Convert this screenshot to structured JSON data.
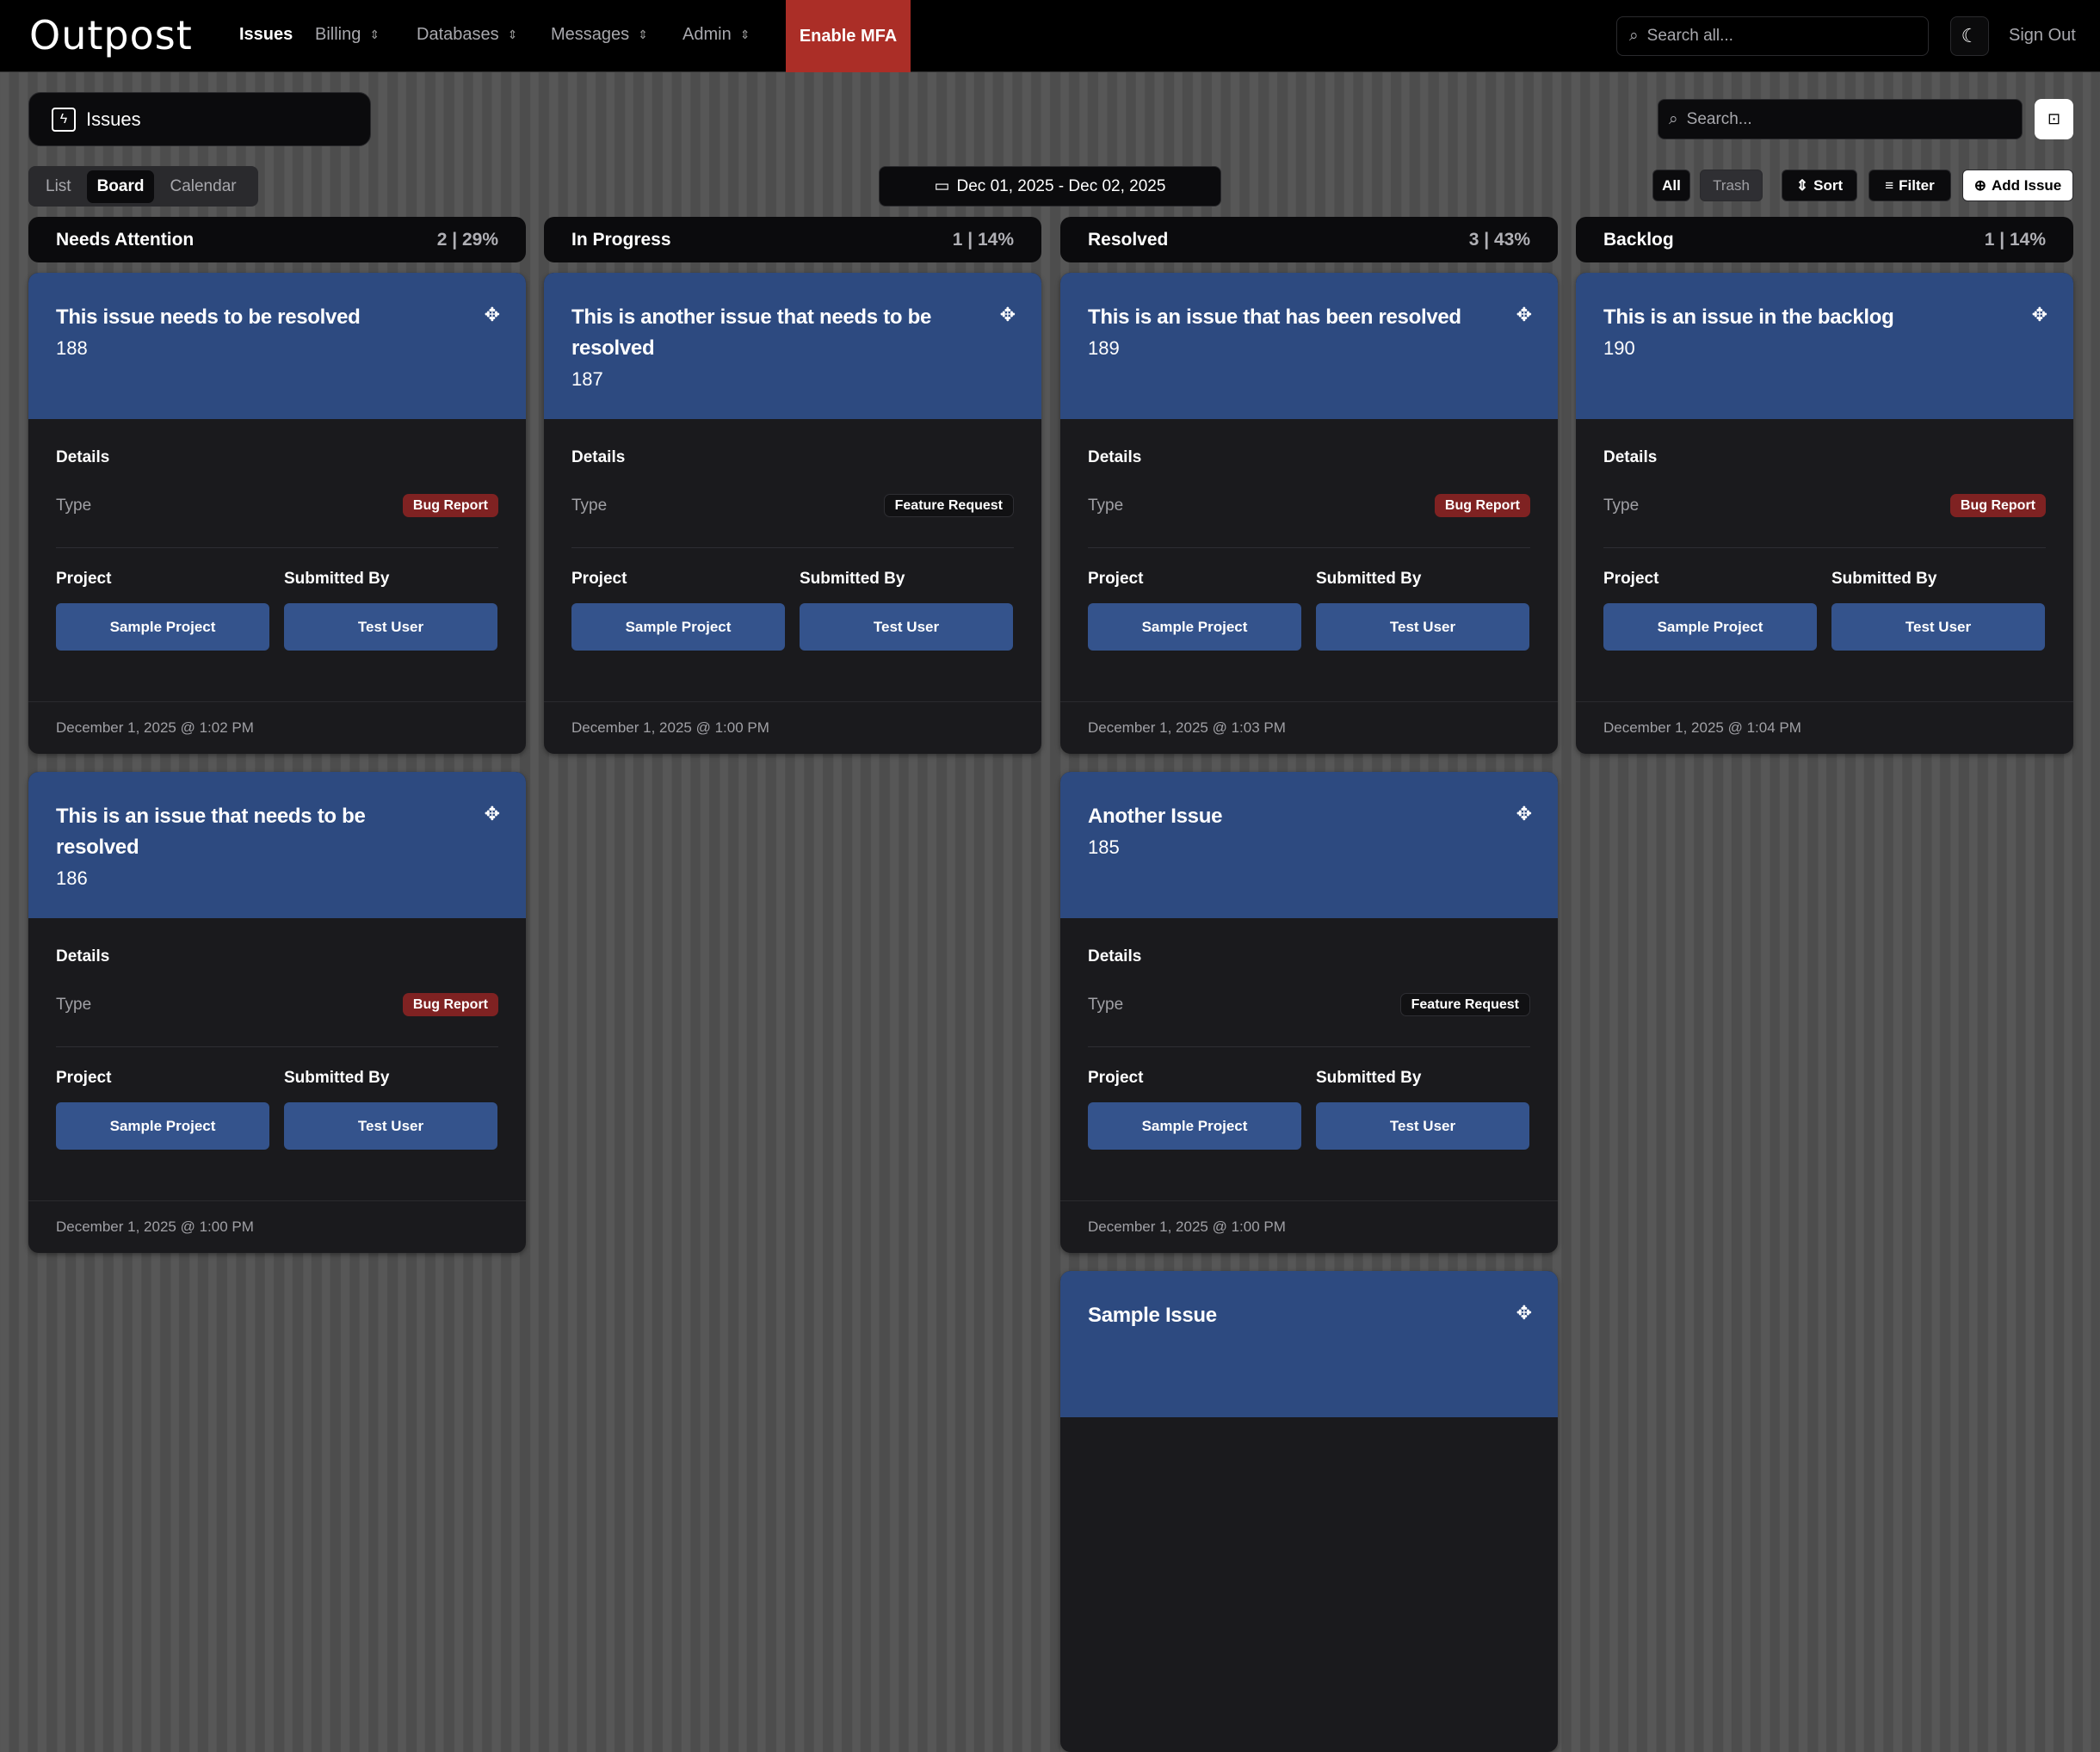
{
  "nav": {
    "logo": "Outpost",
    "items": [
      {
        "label": "Issues",
        "active": true
      },
      {
        "label": "Billing",
        "menu": true
      },
      {
        "label": "Databases",
        "menu": true
      },
      {
        "label": "Messages",
        "menu": true
      },
      {
        "label": "Admin",
        "menu": true
      }
    ],
    "mfa": "Enable MFA",
    "search_placeholder": "Search all...",
    "sign_out": "Sign Out"
  },
  "page": {
    "title": "Issues",
    "views": [
      "List",
      "Board",
      "Calendar"
    ],
    "active_view": "Board",
    "date_range": "Dec 01, 2025 - Dec 02, 2025",
    "search_placeholder": "Search...",
    "all": "All",
    "trash": "Trash",
    "sort": "Sort",
    "filter": "Filter",
    "add": "Add Issue"
  },
  "labels": {
    "details": "Details",
    "type": "Type",
    "project": "Project",
    "submitted_by": "Submitted By"
  },
  "colors": {
    "accent": "#2d4a80",
    "bug": "#7f2222",
    "mfa": "#ab2e27"
  },
  "columns": [
    {
      "name": "Needs Attention",
      "count": "2 | 29%",
      "cards": [
        {
          "title": "This issue needs to be resolved",
          "id": "188",
          "type": "Bug Report",
          "project": "Sample Project",
          "user": "Test User",
          "date": "December 1, 2025 @ 1:02 PM"
        },
        {
          "title": "This is an issue that needs to be resolved",
          "id": "186",
          "type": "Bug Report",
          "project": "Sample Project",
          "user": "Test User",
          "date": "December 1, 2025 @ 1:00 PM"
        }
      ]
    },
    {
      "name": "In Progress",
      "count": "1 | 14%",
      "cards": [
        {
          "title": "This is another issue that needs to be resolved",
          "id": "187",
          "type": "Feature Request",
          "project": "Sample Project",
          "user": "Test User",
          "date": "December 1, 2025 @ 1:00 PM"
        }
      ]
    },
    {
      "name": "Resolved",
      "count": "3 | 43%",
      "cards": [
        {
          "title": "This is an issue that has been resolved",
          "id": "189",
          "type": "Bug Report",
          "project": "Sample Project",
          "user": "Test User",
          "date": "December 1, 2025 @ 1:03 PM"
        },
        {
          "title": "Another Issue",
          "id": "185",
          "type": "Feature Request",
          "project": "Sample Project",
          "user": "Test User",
          "date": "December 1, 2025 @ 1:00 PM"
        },
        {
          "title": "Sample Issue"
        }
      ]
    },
    {
      "name": "Backlog",
      "count": "1 | 14%",
      "cards": [
        {
          "title": "This is an issue in the backlog",
          "id": "190",
          "type": "Bug Report",
          "project": "Sample Project",
          "user": "Test User",
          "date": "December 1, 2025 @ 1:04 PM"
        }
      ]
    }
  ]
}
